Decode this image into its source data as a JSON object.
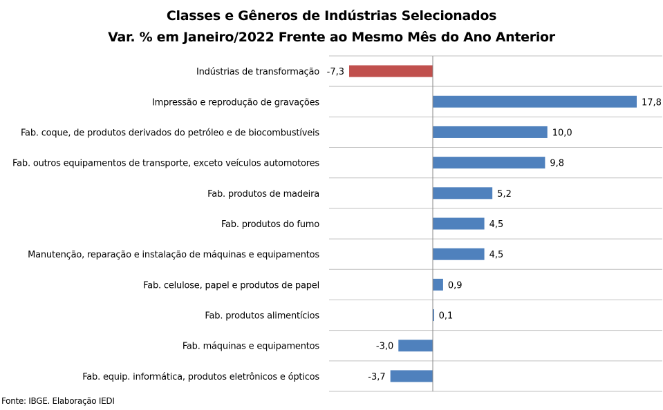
{
  "chart_data": {
    "type": "bar",
    "orientation": "horizontal",
    "title": [
      "Classes e Gêneros de Indústrias Selecionados",
      "Var. % em Janeiro/2022 Frente ao Mesmo Mês do Ano Anterior"
    ],
    "xlabel": "",
    "ylabel": "",
    "xlim": [
      -7.3,
      17.8
    ],
    "grid": "horizontal category separators",
    "legend": "none",
    "categories": [
      "Indústrias de transformação",
      "Impressão e reprodução de gravações",
      "Fab. coque, de produtos derivados do petróleo e de biocombustíveis",
      "Fab. outros equipamentos de transporte, exceto veículos automotores",
      "Fab. produtos de madeira",
      "Fab. produtos do fumo",
      "Manutenção, reparação e instalação de máquinas e equipamentos",
      "Fab. celulose, papel e produtos de papel",
      "Fab. produtos alimentícios",
      "Fab. máquinas e equipamentos",
      "Fab. equip. informática, produtos eletrônicos e ópticos"
    ],
    "values": [
      -7.3,
      17.8,
      10.0,
      9.8,
      5.2,
      4.5,
      4.5,
      0.9,
      0.1,
      -3.0,
      -3.7
    ],
    "value_labels": [
      "-7,3",
      "17,8",
      "10,0",
      "9,8",
      "5,2",
      "4,5",
      "4,5",
      "0,9",
      "0,1",
      "-3,0",
      "-3,7"
    ],
    "colors": {
      "highlight": "#C0504D",
      "bar": "#4F81BD",
      "grid": "#BFBFBF",
      "axis": "#888888"
    },
    "highlight_index": 0
  },
  "source_text": "Fonte: IBGE. Elaboração IEDI"
}
